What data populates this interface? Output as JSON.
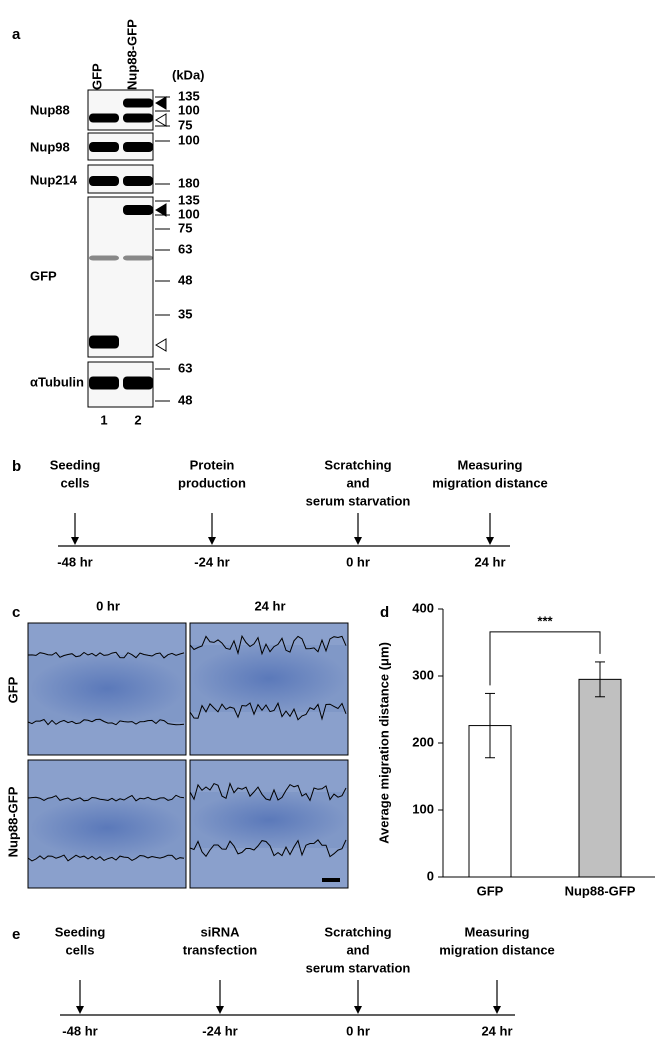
{
  "panel_a": {
    "label": "a",
    "lanes": [
      "GFP",
      "Nup88-GFP"
    ],
    "unit": "(kDa)",
    "blots": [
      {
        "name": "Nup88",
        "markers": [
          135,
          100,
          75
        ]
      },
      {
        "name": "Nup98",
        "markers": [
          100
        ]
      },
      {
        "name": "Nup214",
        "markers": [
          180
        ]
      },
      {
        "name": "GFP",
        "markers": [
          135,
          100,
          75,
          63,
          48,
          35
        ]
      },
      {
        "name": "αTubulin",
        "markers": [
          63,
          48
        ]
      }
    ],
    "lane_numbers": [
      "1",
      "2"
    ]
  },
  "panel_b": {
    "label": "b",
    "events": [
      {
        "lines": [
          "Seeding",
          "cells"
        ],
        "time": "-48 hr"
      },
      {
        "lines": [
          "Protein",
          "production"
        ],
        "time": "-24 hr"
      },
      {
        "lines": [
          "Scratching",
          "and",
          "serum starvation"
        ],
        "time": "0 hr"
      },
      {
        "lines": [
          "Measuring",
          "migration distance"
        ],
        "time": "24 hr"
      }
    ]
  },
  "panel_c": {
    "label": "c",
    "columns": [
      "0 hr",
      "24 hr"
    ],
    "rows": [
      "GFP",
      "Nup88-GFP"
    ]
  },
  "chart_data": {
    "type": "bar",
    "panel_label": "d",
    "y_label": "Average migration distance (μm)",
    "categories": [
      "GFP",
      "Nup88-GFP"
    ],
    "values": [
      226,
      295
    ],
    "errors": [
      48,
      26
    ],
    "colors": [
      "#ffffff",
      "#c0c0c0"
    ],
    "ylim": [
      0,
      400
    ],
    "yticks": [
      0,
      100,
      200,
      300,
      400
    ],
    "annotation": "***"
  },
  "panel_e": {
    "label": "e",
    "events": [
      {
        "lines": [
          "Seeding",
          "cells"
        ],
        "time": "-48 hr"
      },
      {
        "lines": [
          "siRNA",
          "transfection"
        ],
        "time": "-24 hr"
      },
      {
        "lines": [
          "Scratching",
          "and",
          "serum starvation"
        ],
        "time": "0 hr"
      },
      {
        "lines": [
          "Measuring",
          "migration distance"
        ],
        "time": "24 hr"
      }
    ]
  }
}
